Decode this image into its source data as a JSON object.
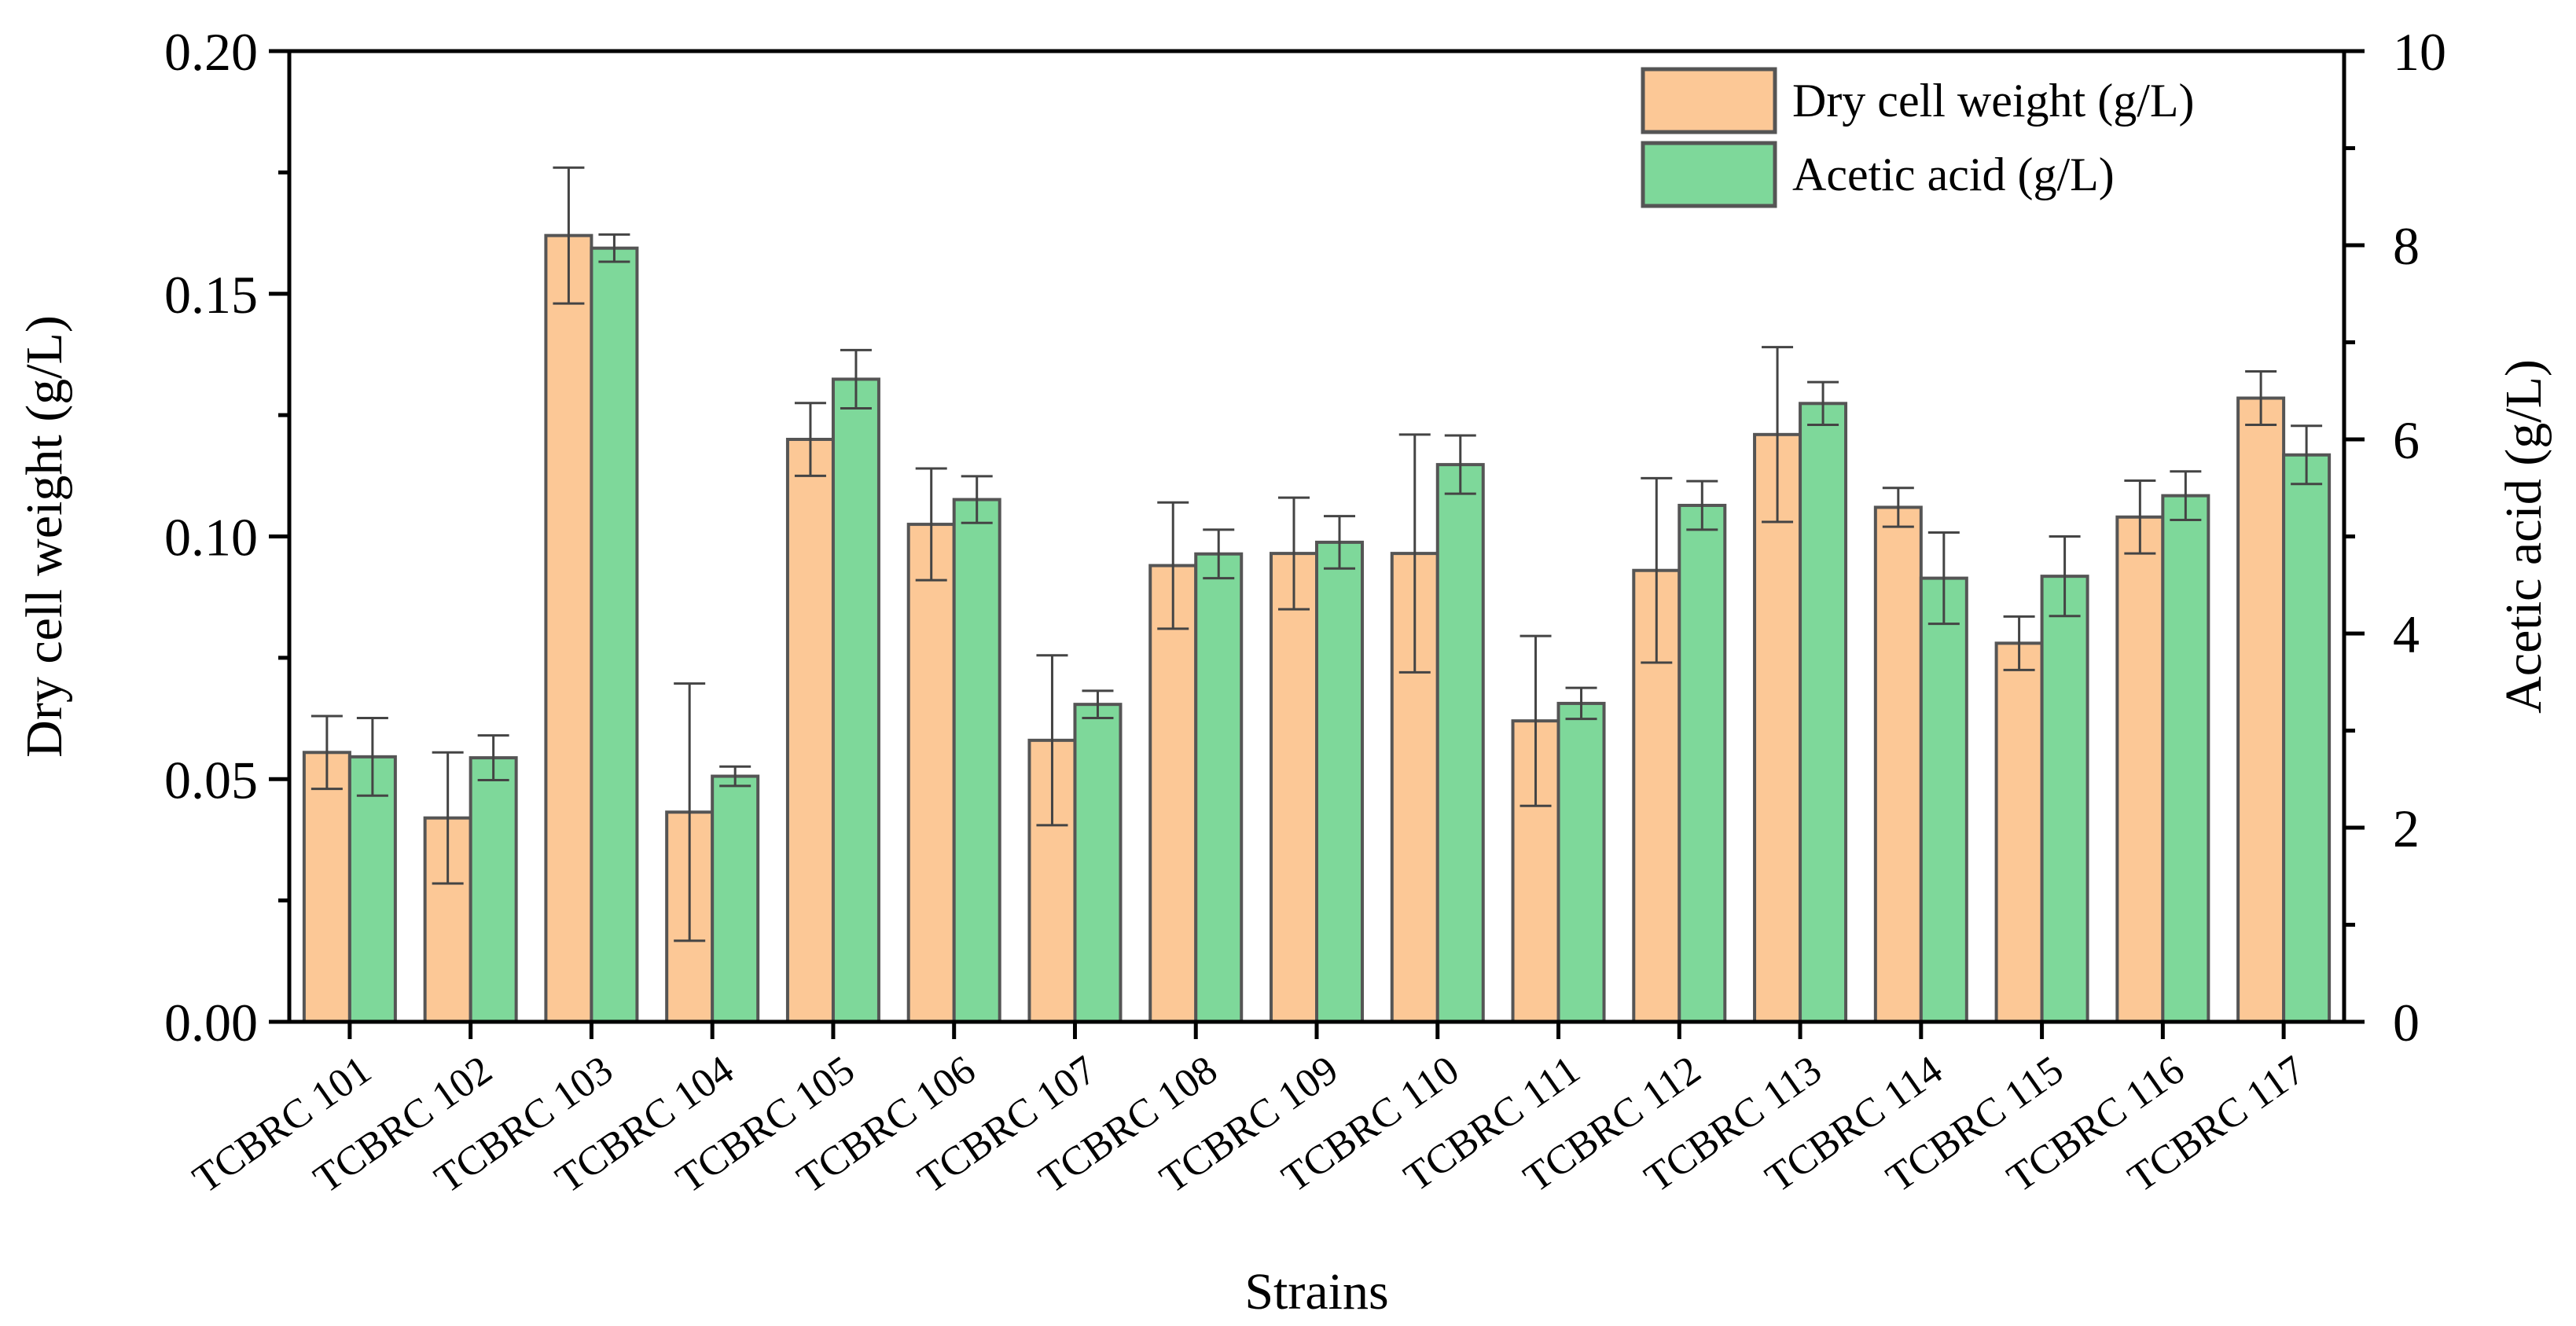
{
  "chart_data": {
    "type": "bar",
    "categories": [
      "TCBRC 101",
      "TCBRC 102",
      "TCBRC 103",
      "TCBRC 104",
      "TCBRC 105",
      "TCBRC 106",
      "TCBRC 107",
      "TCBRC 108",
      "TCBRC 109",
      "TCBRC 110",
      "TCBRC 111",
      "TCBRC 112",
      "TCBRC 113",
      "TCBRC 114",
      "TCBRC 115",
      "TCBRC 116",
      "TCBRC 117"
    ],
    "xlabel": "Strains",
    "ylabel": "Dry cell weight (g/L)",
    "ylabel_right": "Acetic acid (g/L)",
    "ylim": [
      0,
      0.2
    ],
    "ylim_right": [
      0,
      10
    ],
    "yticks": [
      "0.00",
      "0.05",
      "0.10",
      "0.15",
      "0.20"
    ],
    "yticks_right": [
      "0",
      "2",
      "4",
      "6",
      "8",
      "10"
    ],
    "legend_position": "top-right",
    "series": [
      {
        "name": "Dry cell weight (g/L)",
        "axis": "left",
        "color": "#FCC896",
        "values": [
          0.0555,
          0.042,
          0.162,
          0.0432,
          0.12,
          0.1025,
          0.058,
          0.094,
          0.0965,
          0.0965,
          0.062,
          0.093,
          0.121,
          0.106,
          0.078,
          0.104,
          0.1285
        ],
        "errors": [
          0.0075,
          0.0135,
          0.014,
          0.0265,
          0.0075,
          0.0115,
          0.0175,
          0.013,
          0.0115,
          0.0245,
          0.0175,
          0.019,
          0.018,
          0.004,
          0.0055,
          0.0075,
          0.0055
        ]
      },
      {
        "name": "Acetic acid (g/L)",
        "axis": "right",
        "color": "#7ED89A",
        "values": [
          2.73,
          2.72,
          7.97,
          2.53,
          6.62,
          5.38,
          3.27,
          4.82,
          4.94,
          5.74,
          3.28,
          5.32,
          6.37,
          4.57,
          4.59,
          5.42,
          5.84
        ],
        "errors": [
          0.4,
          0.23,
          0.14,
          0.1,
          0.3,
          0.24,
          0.14,
          0.25,
          0.27,
          0.3,
          0.16,
          0.25,
          0.22,
          0.47,
          0.41,
          0.25,
          0.3
        ]
      }
    ]
  }
}
